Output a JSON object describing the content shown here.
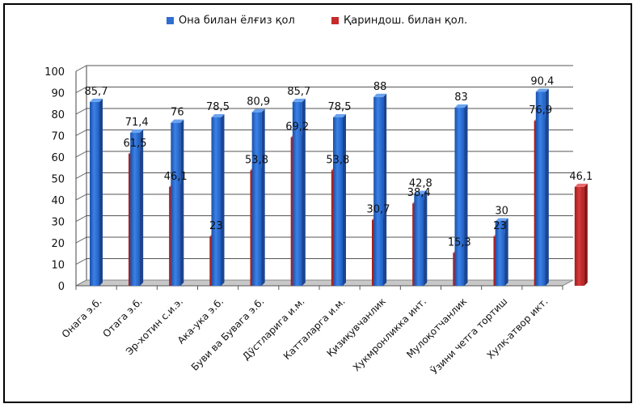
{
  "chart_data": {
    "type": "bar",
    "categories": [
      "Онага э.б.",
      "Отага э.б.",
      "Эр-хотин с.и.э.",
      "Ака-ука э.б.",
      "Буви ва Бувага э.б.",
      "Дўстларига и.м.",
      "Катталарга и.м.",
      "Қизиқувчанлик",
      "Хукмронликка инт.",
      "Мулоқотчанлик",
      "Ўзини четга тортиш",
      "Хулқ-атвор икт."
    ],
    "series": [
      {
        "name": "Она билан ёлғиз қол",
        "values": [
          85.7,
          71.4,
          76,
          78.5,
          80.9,
          85.7,
          78.5,
          88,
          42.8,
          83,
          30,
          90.4
        ],
        "labels": [
          "85,7",
          "71,4",
          "76",
          "78,5",
          "80,9",
          "85,7",
          "78,5",
          "88",
          "42,8",
          "83",
          "30",
          "90,4"
        ],
        "color": "#2f6ed0"
      },
      {
        "name": "Қариндош. билан қол.",
        "values": [
          61.5,
          46.1,
          23,
          53.8,
          69.2,
          53.8,
          30.7,
          38.4,
          15.3,
          23,
          76.9,
          46.1
        ],
        "labels": [
          "61,5",
          "46,1",
          "23",
          "53,8",
          "69,2",
          "53,8",
          "30,7",
          "38,4",
          "15,3",
          "23",
          "76,9",
          "46,1"
        ],
        "color": "#c62a2a"
      }
    ],
    "yticks": [
      0,
      10,
      20,
      30,
      40,
      50,
      60,
      70,
      80,
      90,
      100
    ],
    "ylim": [
      0,
      100
    ],
    "grid": true,
    "legend_position": "top"
  }
}
